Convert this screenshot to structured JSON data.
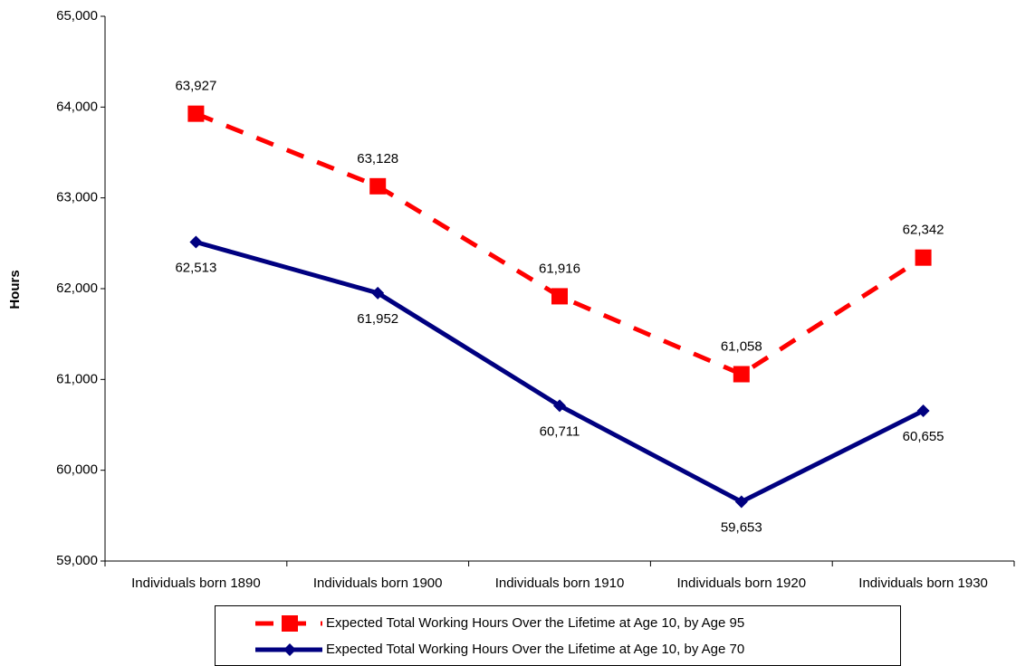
{
  "chart_data": {
    "type": "line",
    "y_label": "Hours",
    "categories": [
      "Individuals born 1890",
      "Individuals born 1900",
      "Individuals born 1910",
      "Individuals born 1920",
      "Individuals born 1930"
    ],
    "series": [
      {
        "name": "Expected Total Working Hours Over the Lifetime at Age 10, by Age 95",
        "color": "#ff0000",
        "values": [
          63927,
          63128,
          61916,
          61058,
          62342
        ],
        "value_labels": [
          "63,927",
          "63,128",
          "61,916",
          "61,058",
          "62,342"
        ]
      },
      {
        "name": "Expected Total Working Hours Over the Lifetime at Age 10, by Age 70",
        "color": "#000080",
        "values": [
          62513,
          61952,
          60711,
          59653,
          60655
        ],
        "value_labels": [
          "62,513",
          "61,952",
          "60,711",
          "59,653",
          "60,655"
        ]
      }
    ],
    "ylim": [
      59000,
      65000
    ],
    "yticks": [
      {
        "value": 59000,
        "label": "59,000"
      },
      {
        "value": 60000,
        "label": "60,000"
      },
      {
        "value": 61000,
        "label": "61,000"
      },
      {
        "value": 62000,
        "label": "62,000"
      },
      {
        "value": 63000,
        "label": "63,000"
      },
      {
        "value": 64000,
        "label": "64,000"
      },
      {
        "value": 65000,
        "label": "65,000"
      }
    ]
  }
}
